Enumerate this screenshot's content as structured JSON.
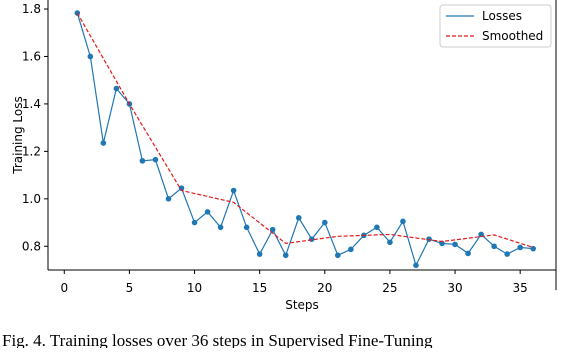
{
  "chart_data": {
    "type": "line",
    "caption": "Fig. 4.  Training losses over 36 steps in Supervised Fine-Tuning",
    "xlabel": "Steps",
    "ylabel": "Training Loss",
    "xlim": [
      -1.25,
      37.75
    ],
    "ylim": [
      0.7,
      1.838
    ],
    "xticks": [
      0,
      5,
      10,
      15,
      20,
      25,
      30,
      35
    ],
    "yticks": [
      0.8,
      {
        "value": 1,
        "label": "1.0"
      },
      1.2,
      1.4,
      1.6,
      1.8
    ],
    "legend": "upper right",
    "series": [
      {
        "name": "Losses",
        "color": "#1f77b4",
        "style": "solid",
        "markers": true,
        "x": [
          1,
          2,
          3,
          4,
          5,
          6,
          7,
          8,
          9,
          10,
          11,
          12,
          13,
          14,
          15,
          16,
          17,
          18,
          19,
          20,
          21,
          22,
          23,
          24,
          25,
          26,
          27,
          28,
          29,
          30,
          31,
          32,
          33,
          34,
          35,
          36
        ],
        "values": [
          1.783,
          1.6,
          1.235,
          1.465,
          1.4,
          1.16,
          1.165,
          1.0,
          1.045,
          0.9,
          0.945,
          0.88,
          1.035,
          0.88,
          0.767,
          0.87,
          0.762,
          0.92,
          0.83,
          0.9,
          0.762,
          0.787,
          0.846,
          0.88,
          0.817,
          0.905,
          0.72,
          0.83,
          0.812,
          0.808,
          0.77,
          0.85,
          0.8,
          0.767,
          0.795,
          0.79
        ]
      },
      {
        "name": "Smoothed",
        "color": "#e31a1c",
        "style": "dashed",
        "markers": false,
        "x": [
          1,
          5,
          9,
          13,
          17,
          21,
          25,
          29,
          33,
          36
        ],
        "values": [
          1.783,
          1.4,
          1.035,
          0.985,
          0.812,
          0.842,
          0.85,
          0.82,
          0.848,
          0.795
        ]
      }
    ]
  }
}
